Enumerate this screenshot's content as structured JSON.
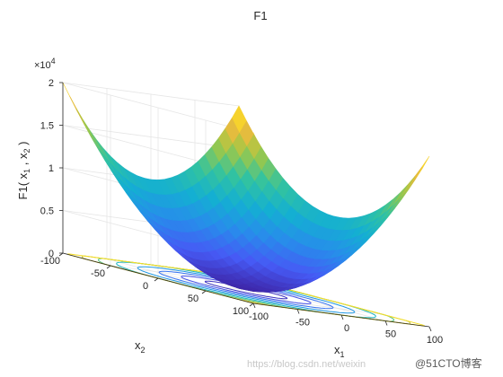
{
  "chart_data": {
    "type": "surface",
    "title": "F1",
    "function": "x1^2 + x2^2",
    "zlabel": "F1( x_1 , x_2 )",
    "xlabel": "x_1",
    "ylabel": "x_2",
    "xlim": [
      -100,
      100
    ],
    "ylim": [
      -100,
      100
    ],
    "zlim": [
      0,
      20000
    ],
    "z_exponent_label": "×10^4",
    "xticks": [
      -100,
      -50,
      0,
      50,
      100
    ],
    "yticks": [
      -100,
      -50,
      0,
      50,
      100
    ],
    "zticks": [
      0,
      0.5,
      1,
      1.5,
      2
    ],
    "xtick_labels": [
      "-100",
      "-50",
      "0",
      "50",
      "100"
    ],
    "ytick_labels": [
      "-100",
      "-50",
      "0",
      "50",
      "100"
    ],
    "ztick_labels": [
      "0",
      "0.5",
      "1",
      "1.5",
      "2"
    ],
    "contour_levels": [
      1000,
      2500,
      4500,
      7000,
      10000,
      13000,
      16000,
      19000
    ],
    "colormap": "parula",
    "grid": true
  },
  "watermark": {
    "left": "https://blog.csdn.net/weixin",
    "right": "@51CTO博客"
  }
}
